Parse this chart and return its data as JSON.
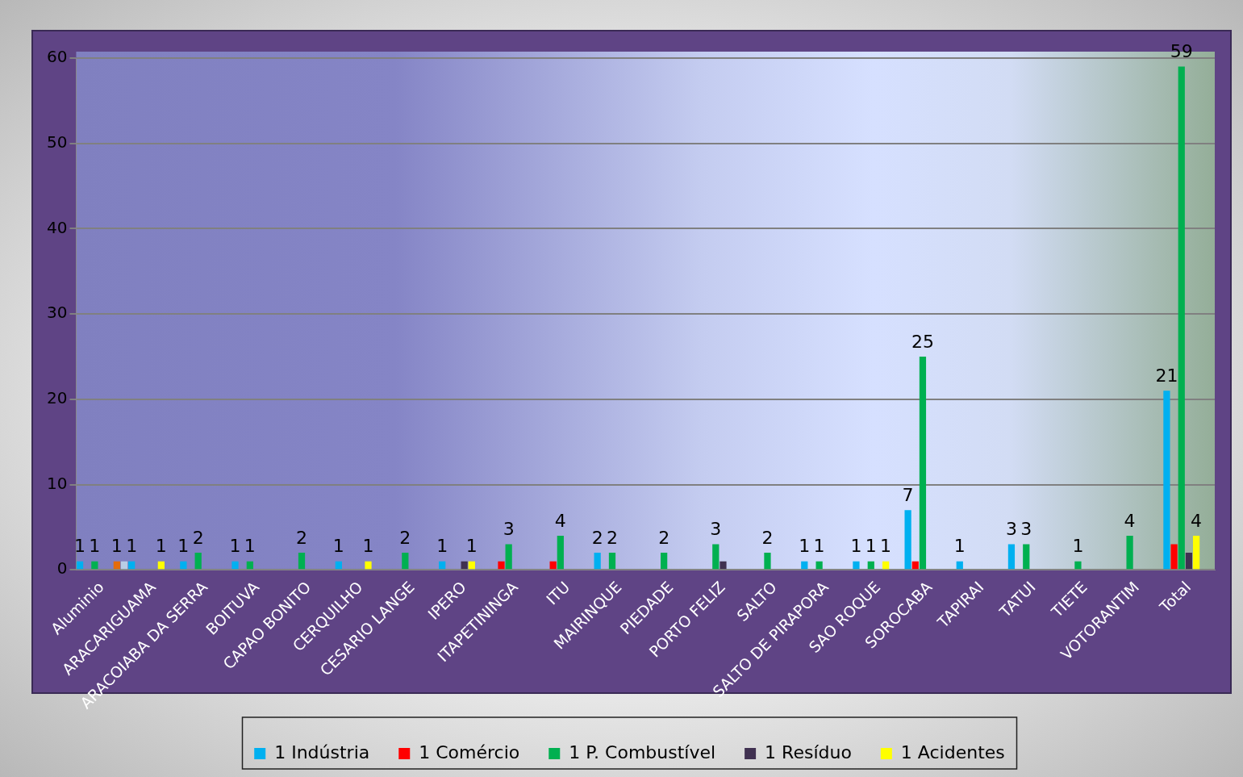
{
  "chart_data": {
    "type": "bar",
    "categories": [
      "Aluminio",
      "ARACARIGUAMA",
      "ARACOIABA DA SERRA",
      "BOITUVA",
      "CAPAO BONITO",
      "CERQUILHO",
      "CESARIO LANGE",
      "IPERO",
      "ITAPETININGA",
      "ITU",
      "MAIRINQUE",
      "PIEDADE",
      "PORTO FELIZ",
      "SALTO",
      "SALTO DE PIRAPORA",
      "SAO ROQUE",
      "SOROCABA",
      "TAPIRAI",
      "TATUI",
      "TIETE",
      "VOTORANTIM",
      "Total"
    ],
    "series": [
      {
        "name": "1 Indústria",
        "color": "#00b0f0",
        "values": [
          1,
          1,
          1,
          1,
          null,
          1,
          null,
          1,
          null,
          null,
          2,
          null,
          null,
          null,
          1,
          1,
          7,
          1,
          3,
          null,
          null,
          21
        ],
        "value_labels": [
          "1",
          "1",
          "1",
          "1",
          null,
          "1",
          null,
          "1",
          null,
          null,
          "2",
          null,
          null,
          null,
          "1",
          "1",
          "7",
          "1",
          "3",
          null,
          null,
          "21"
        ]
      },
      {
        "name": "1 Comércio",
        "color": "#ff0000",
        "values": [
          null,
          null,
          null,
          null,
          null,
          null,
          null,
          null,
          1,
          1,
          null,
          null,
          null,
          null,
          null,
          null,
          1,
          null,
          null,
          null,
          null,
          3
        ]
      },
      {
        "name": "1 P. Combustível",
        "color": "#00b050",
        "values": [
          1,
          null,
          2,
          1,
          2,
          null,
          2,
          null,
          3,
          4,
          2,
          2,
          3,
          2,
          1,
          1,
          25,
          null,
          3,
          1,
          4,
          59
        ],
        "value_labels": [
          "1",
          null,
          "2",
          "1",
          "2",
          null,
          "2",
          null,
          "3",
          "4",
          "2",
          "2",
          "3",
          "2",
          "1",
          "1",
          "25",
          null,
          "3",
          "1",
          "4",
          "59"
        ]
      },
      {
        "name": "1 Resíduo",
        "color": "#403151",
        "values": [
          null,
          null,
          null,
          null,
          null,
          null,
          null,
          1,
          null,
          null,
          null,
          null,
          1,
          null,
          null,
          null,
          null,
          null,
          null,
          null,
          null,
          2
        ]
      },
      {
        "name": "1 Acidentes",
        "color": "#ffff00",
        "values": [
          null,
          1,
          null,
          null,
          null,
          1,
          null,
          1,
          null,
          null,
          null,
          null,
          null,
          null,
          null,
          1,
          null,
          null,
          null,
          null,
          null,
          4
        ],
        "value_labels": [
          null,
          "1",
          null,
          null,
          null,
          "1",
          null,
          "1",
          null,
          null,
          null,
          null,
          null,
          null,
          null,
          "1",
          null,
          null,
          null,
          null,
          null,
          "4"
        ]
      },
      {
        "color": "#e46c0a",
        "values": [
          1,
          null,
          null,
          null,
          null,
          null,
          null,
          null,
          null,
          null,
          null,
          null,
          null,
          null,
          null,
          null,
          null,
          null,
          null,
          null,
          null,
          null
        ],
        "value_labels": [
          "1",
          null,
          null,
          null,
          null,
          null,
          null,
          null,
          null,
          null,
          null,
          null,
          null,
          null,
          null,
          null,
          null,
          null,
          null,
          null,
          null,
          null
        ]
      },
      {
        "color": "#b9cde5",
        "values": [
          1,
          null,
          null,
          null,
          null,
          null,
          null,
          null,
          null,
          null,
          null,
          null,
          null,
          null,
          null,
          null,
          null,
          null,
          null,
          null,
          null,
          null
        ]
      }
    ],
    "ylim": [
      0,
      60
    ],
    "yticks": [
      0,
      10,
      20,
      30,
      40,
      50,
      60
    ],
    "grid": "y",
    "legend": "bottom"
  }
}
